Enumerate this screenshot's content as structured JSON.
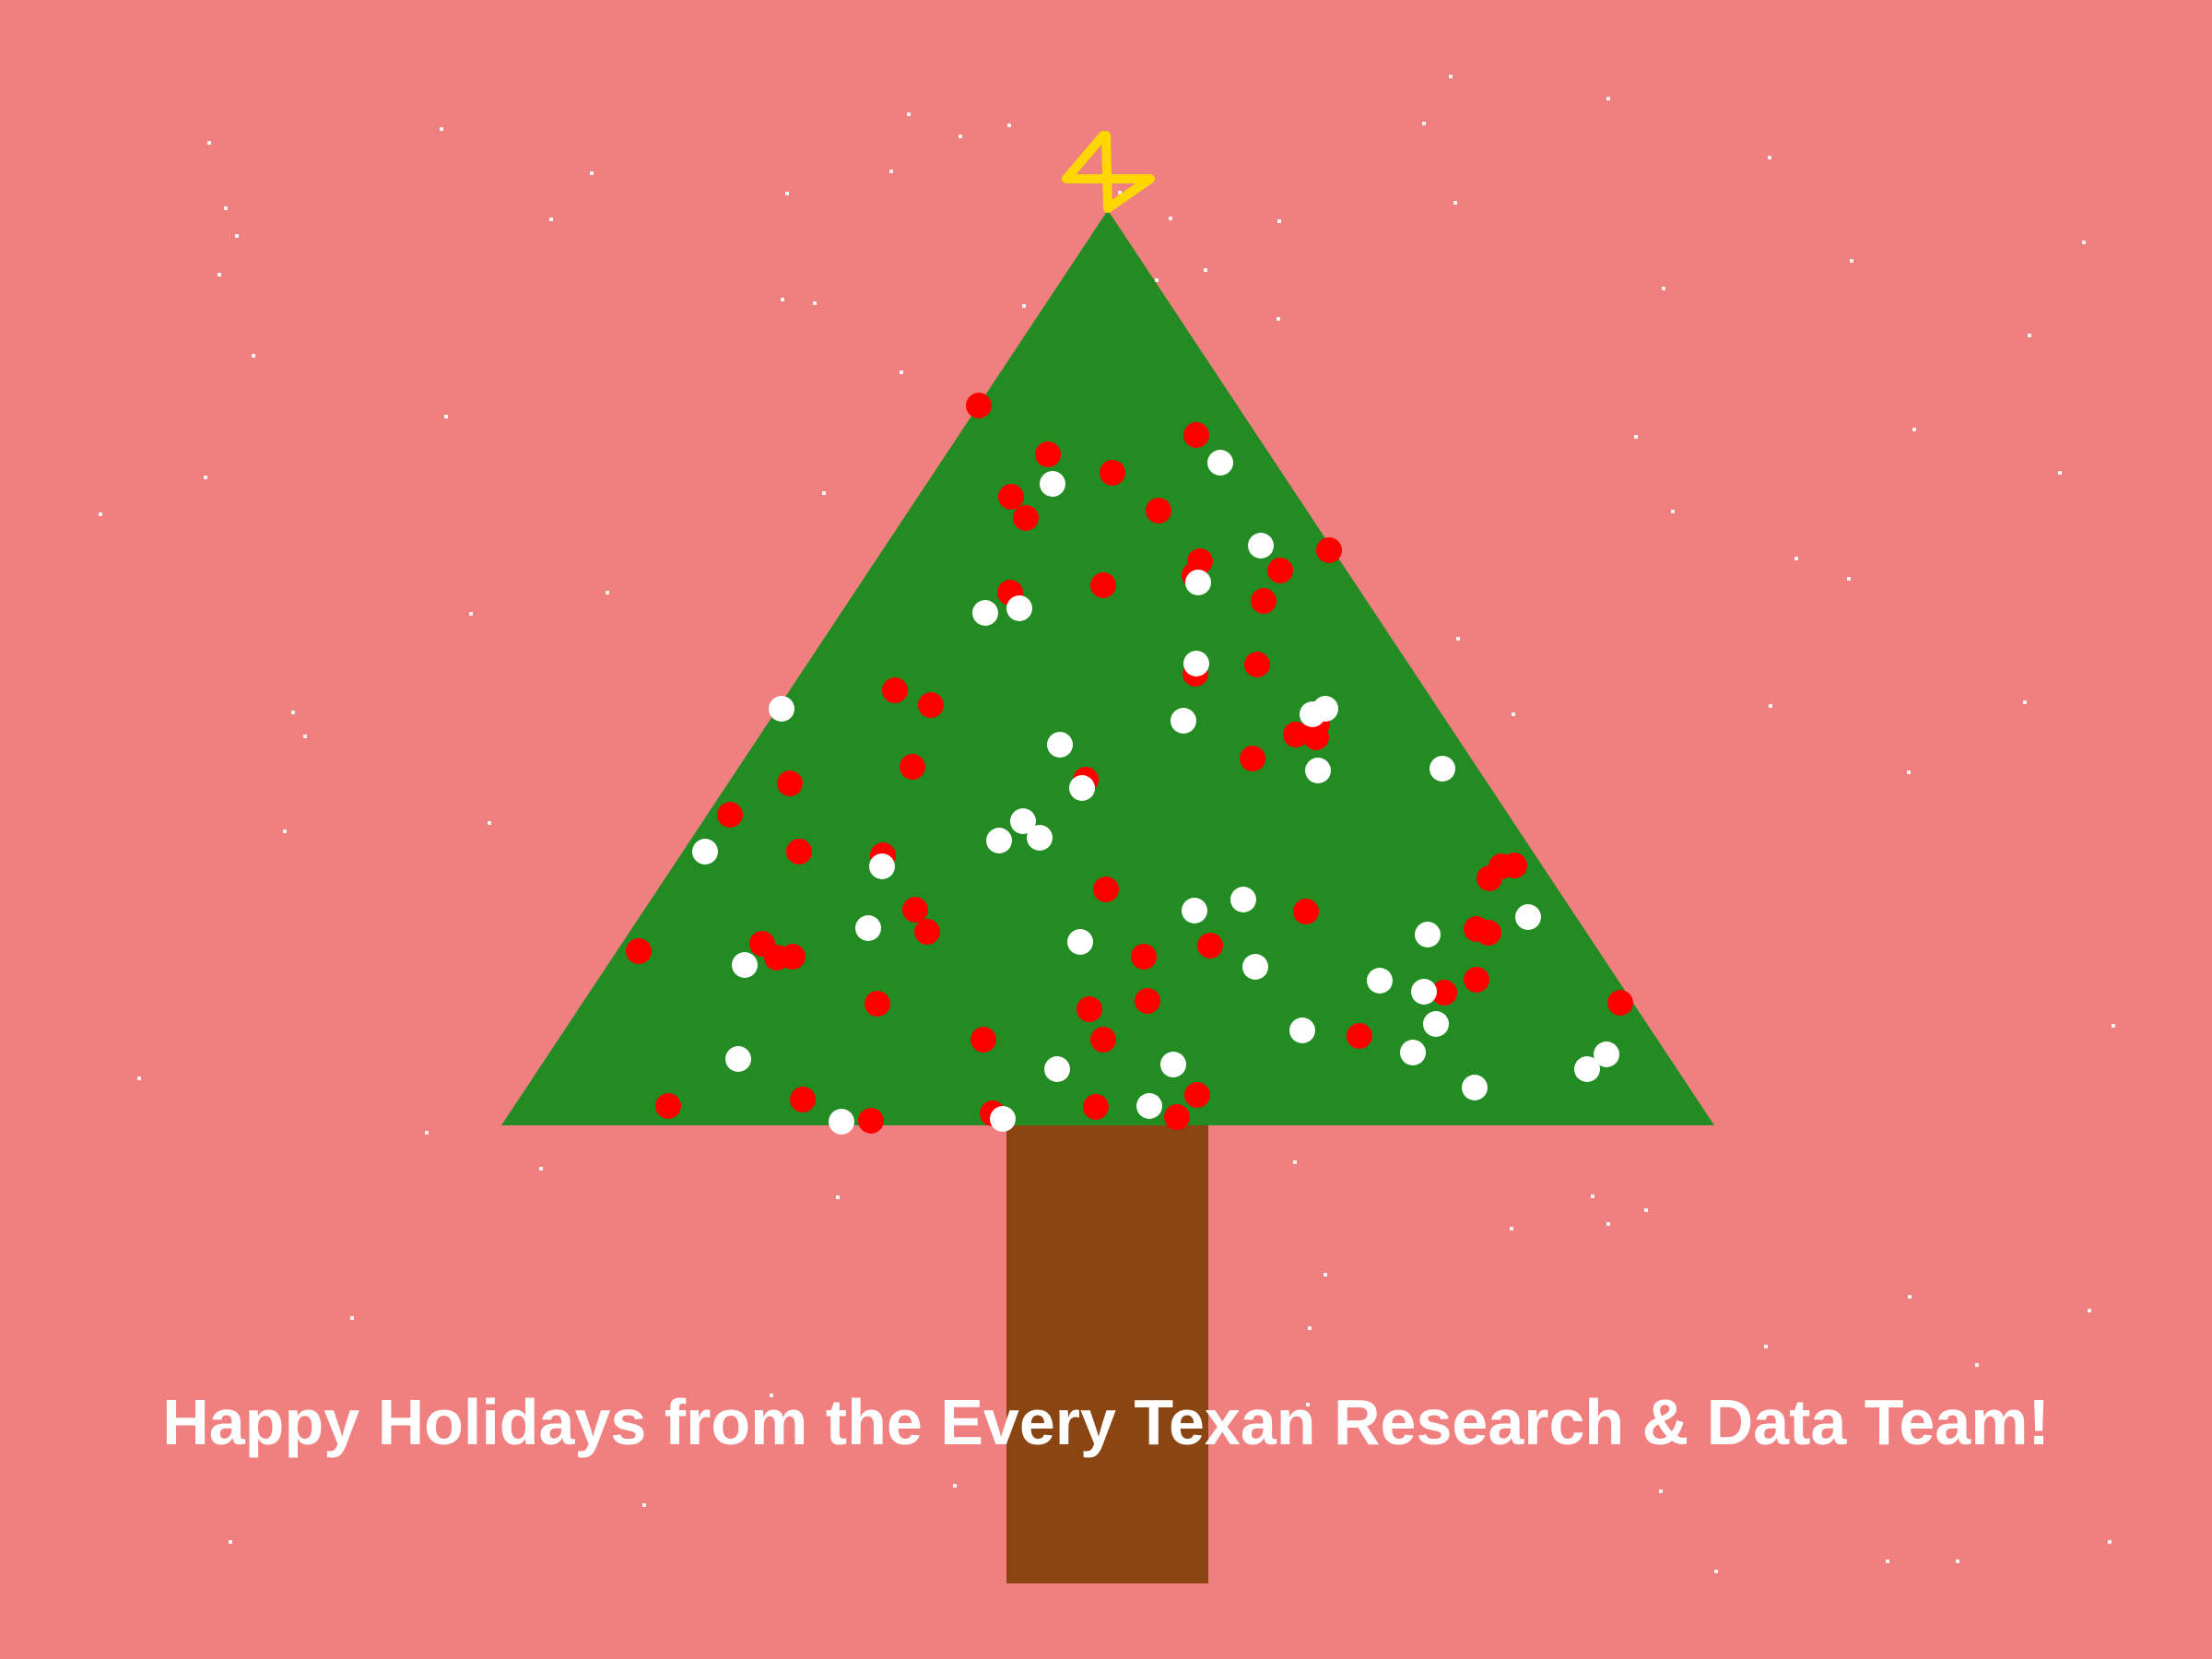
{
  "greeting": "Happy Holidays from the Every Texan Research & Data Team!",
  "colors": {
    "background": "#F08080",
    "tree": "#228B22",
    "trunk": "#8B4513",
    "star": "#FFD700",
    "ornament_red": "#FF0000",
    "ornament_white": "#FFFFFF",
    "snow": "#F5F5F5",
    "text": "#FFFFFF"
  }
}
